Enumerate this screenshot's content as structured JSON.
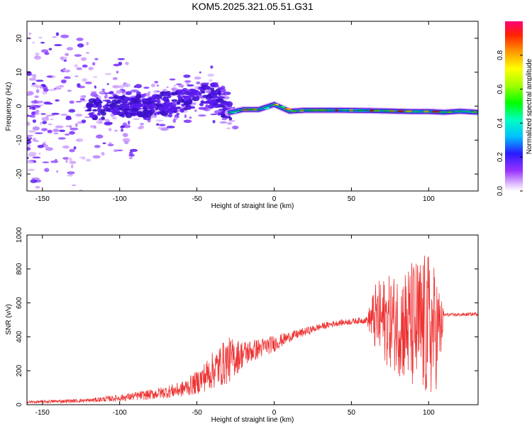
{
  "title": "KOM5.2025.321.05.51.G31",
  "colors": {
    "snr_line": "#ee3333",
    "axes": "#000000",
    "trace_core": "#1a1a1a"
  },
  "chart_data": [
    {
      "type": "heatmap",
      "xlabel": "Height of straight line (km)",
      "ylabel": "Frequency (Hz)",
      "xlim": [
        -160,
        132
      ],
      "ylim": [
        -25,
        25
      ],
      "xticks": [
        -150,
        -100,
        -50,
        0,
        50,
        100
      ],
      "yticks": [
        -20,
        -10,
        0,
        10,
        20
      ],
      "colorbar": {
        "label": "Normalized spectral amplitude",
        "range": [
          0,
          1
        ],
        "ticks": [
          0.0,
          0.2,
          0.4,
          0.6,
          0.8
        ]
      },
      "trace": {
        "x": [
          -160,
          -140,
          -120,
          -100,
          -80,
          -60,
          -50,
          -40,
          -30,
          -20,
          -10,
          0,
          10,
          20,
          40,
          60,
          80,
          90,
          100,
          110,
          120,
          132
        ],
        "y": [
          -3,
          -2,
          -1,
          0,
          0,
          1.5,
          3,
          4,
          -2,
          -1,
          -1,
          0.5,
          -1.5,
          -1.2,
          -1.2,
          -1.3,
          -1.5,
          -1.6,
          -1.6,
          -1.8,
          -1.5,
          -1.8
        ]
      }
    },
    {
      "type": "line",
      "xlabel": "Height of straight line (km)",
      "ylabel": "SNR (v/v)",
      "xlim": [
        -160,
        132
      ],
      "ylim": [
        0,
        1000
      ],
      "xticks": [
        -150,
        -100,
        -50,
        0,
        50,
        100
      ],
      "yticks": [
        0,
        200,
        400,
        600,
        800,
        1000
      ],
      "envelope": {
        "x": [
          -160,
          -140,
          -120,
          -100,
          -80,
          -60,
          -50,
          -40,
          -30,
          -20,
          -10,
          0,
          10,
          20,
          30,
          40,
          50,
          60,
          65,
          70,
          80,
          90,
          100,
          105,
          108,
          110,
          120,
          132
        ],
        "mean": [
          15,
          20,
          25,
          40,
          60,
          90,
          130,
          200,
          260,
          300,
          330,
          360,
          400,
          430,
          460,
          480,
          490,
          500,
          510,
          500,
          480,
          460,
          450,
          440,
          450,
          530,
          530,
          535
        ],
        "amp": [
          8,
          10,
          12,
          20,
          30,
          45,
          70,
          110,
          140,
          80,
          60,
          50,
          30,
          25,
          20,
          18,
          18,
          20,
          200,
          250,
          300,
          400,
          450,
          350,
          200,
          10,
          10,
          10
        ]
      }
    }
  ]
}
